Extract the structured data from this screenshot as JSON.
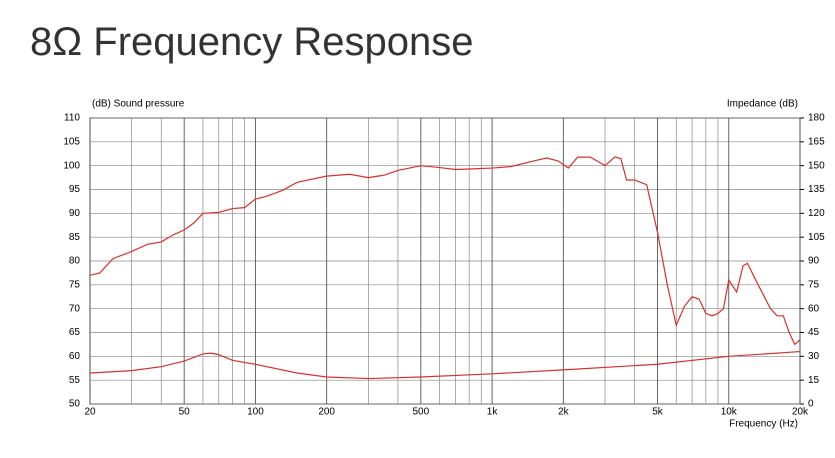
{
  "chart_data": {
    "type": "line",
    "title": "8Ω Frequency Response",
    "y_label": "(dB) Sound pressure",
    "y2_label": "Impedance (dB)",
    "x_label": "Frequency (Hz)",
    "x_log": true,
    "grid": true,
    "xlim": [
      20,
      20000
    ],
    "xticks": [
      20,
      50,
      100,
      200,
      500,
      {
        "value": 1000,
        "label": "1k"
      },
      {
        "value": 2000,
        "label": "2k"
      },
      {
        "value": 5000,
        "label": "5k"
      },
      {
        "value": 10000,
        "label": "10k"
      },
      {
        "value": 20000,
        "label": "20k"
      }
    ],
    "x_minor_grid": [
      30,
      40,
      60,
      70,
      80,
      90,
      300,
      400,
      600,
      700,
      800,
      900,
      3000,
      4000,
      6000,
      7000,
      8000,
      9000
    ],
    "ylim": [
      50,
      110
    ],
    "yticks": [
      50,
      55,
      60,
      65,
      70,
      75,
      80,
      85,
      90,
      95,
      100,
      105,
      110
    ],
    "y2lim": [
      0,
      180
    ],
    "y2ticks": [
      0,
      15,
      30,
      45,
      60,
      75,
      90,
      105,
      120,
      135,
      150,
      165,
      180
    ],
    "series": [
      {
        "name": "Sound pressure",
        "color": "#d9302c",
        "x": [
          20,
          22,
          25,
          30,
          35,
          40,
          45,
          50,
          55,
          60,
          70,
          80,
          90,
          100,
          110,
          130,
          150,
          200,
          250,
          300,
          350,
          400,
          500,
          600,
          700,
          800,
          1000,
          1200,
          1500,
          1700,
          1900,
          2100,
          2300,
          2600,
          3000,
          3300,
          3500,
          3700,
          4000,
          4500,
          5000,
          5500,
          6000,
          6500,
          7000,
          7500,
          8000,
          8500,
          9000,
          9500,
          10000,
          10800,
          11500,
          12000,
          13000,
          15000,
          16000,
          17000,
          18000,
          19000,
          20000
        ],
        "values": [
          77,
          77.5,
          80.5,
          82,
          83.5,
          84,
          85.5,
          86.5,
          88,
          90,
          90.2,
          91,
          91.2,
          93,
          93.5,
          94.8,
          96.5,
          97.8,
          98.2,
          97.5,
          98,
          99,
          100,
          99.6,
          99.2,
          99.3,
          99.5,
          99.8,
          101,
          101.6,
          101,
          99.5,
          101.8,
          101.8,
          100,
          101.8,
          101.5,
          97,
          97,
          96,
          86,
          75,
          66.5,
          70.5,
          72.5,
          72,
          69,
          68.5,
          69,
          70,
          76,
          73.5,
          79,
          79.5,
          76,
          70,
          68.5,
          68.5,
          65,
          62.5,
          63.5
        ]
      },
      {
        "name": "Impedance",
        "color": "#d9302c",
        "axis": "y2",
        "x": [
          20,
          30,
          40,
          50,
          60,
          65,
          70,
          80,
          100,
          150,
          200,
          300,
          500,
          1000,
          2000,
          5000,
          10000,
          20000
        ],
        "values": [
          19.5,
          21,
          23.5,
          27,
          31.5,
          32,
          31,
          27.5,
          25,
          19.5,
          17,
          16,
          17,
          19,
          21.5,
          25,
          30,
          33
        ]
      }
    ]
  }
}
